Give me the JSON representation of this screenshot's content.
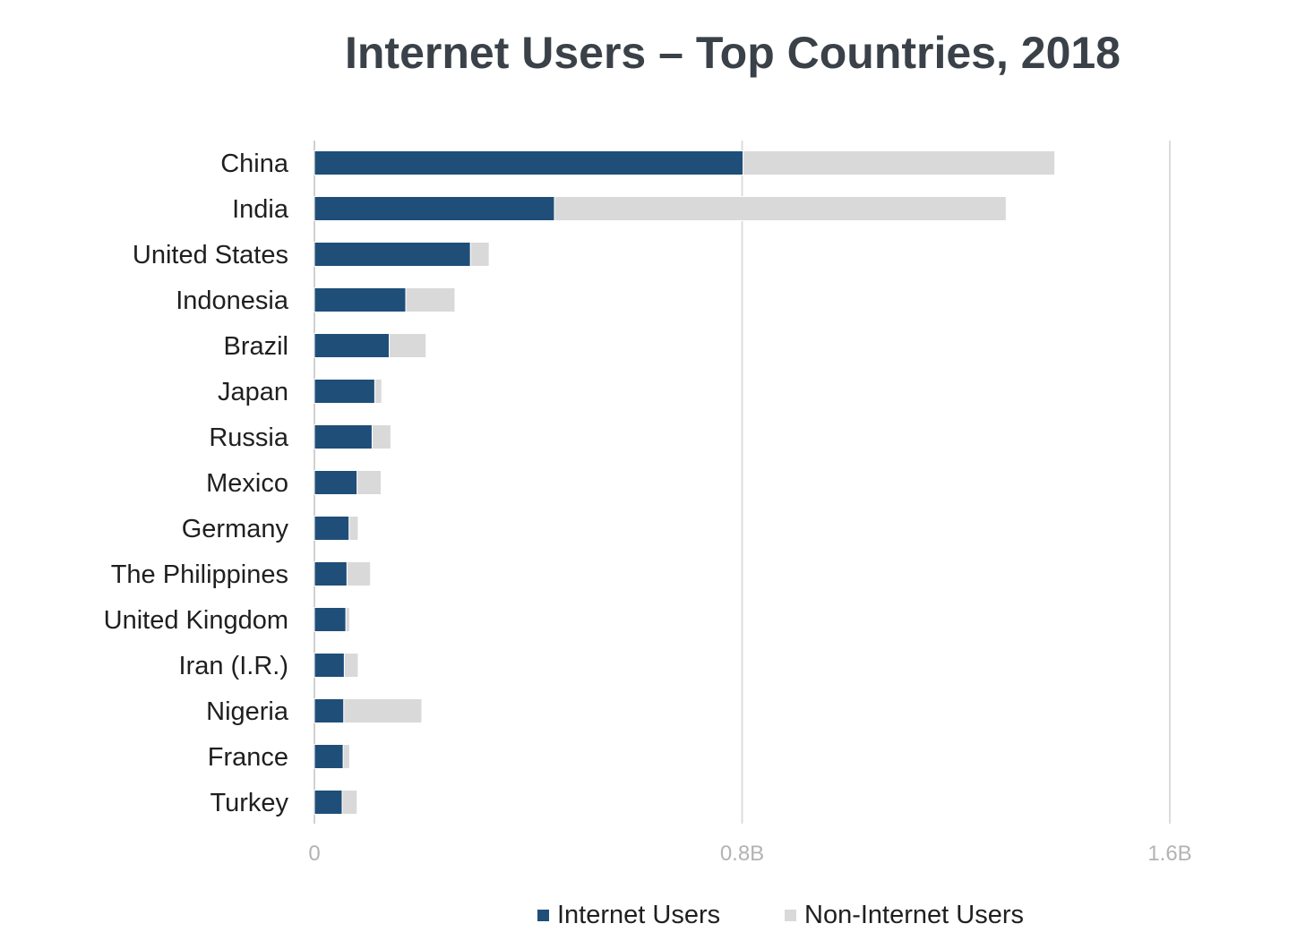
{
  "chart_data": {
    "type": "bar",
    "orientation": "horizontal",
    "stacked": true,
    "title": "Internet Users – Top Countries, 2018",
    "categories": [
      "China",
      "India",
      "United States",
      "Indonesia",
      "Brazil",
      "Japan",
      "Russia",
      "Mexico",
      "Germany",
      "The Philippines",
      "United Kingdom",
      "Iran (I.R.)",
      "Nigeria",
      "France",
      "Turkey"
    ],
    "series": [
      {
        "name": "Internet Users",
        "color": "#1f4e79",
        "values": [
          802,
          449,
          292,
          171,
          140,
          113,
          108,
          80,
          65,
          61,
          59,
          56,
          55,
          54,
          52
        ]
      },
      {
        "name": "Non-Internet Users",
        "color": "#d9d9d9",
        "values": [
          583,
          845,
          35,
          92,
          69,
          13,
          35,
          45,
          17,
          44,
          7,
          26,
          146,
          12,
          28
        ]
      }
    ],
    "xlim": [
      0,
      1600000000
    ],
    "xticks": [
      {
        "value": 0,
        "label": "0"
      },
      {
        "value": 800000000,
        "label": "0.8B"
      },
      {
        "value": 1600000000,
        "label": "1.6B"
      }
    ],
    "value_unit": "millions",
    "grid": true,
    "legend_position": "bottom"
  }
}
